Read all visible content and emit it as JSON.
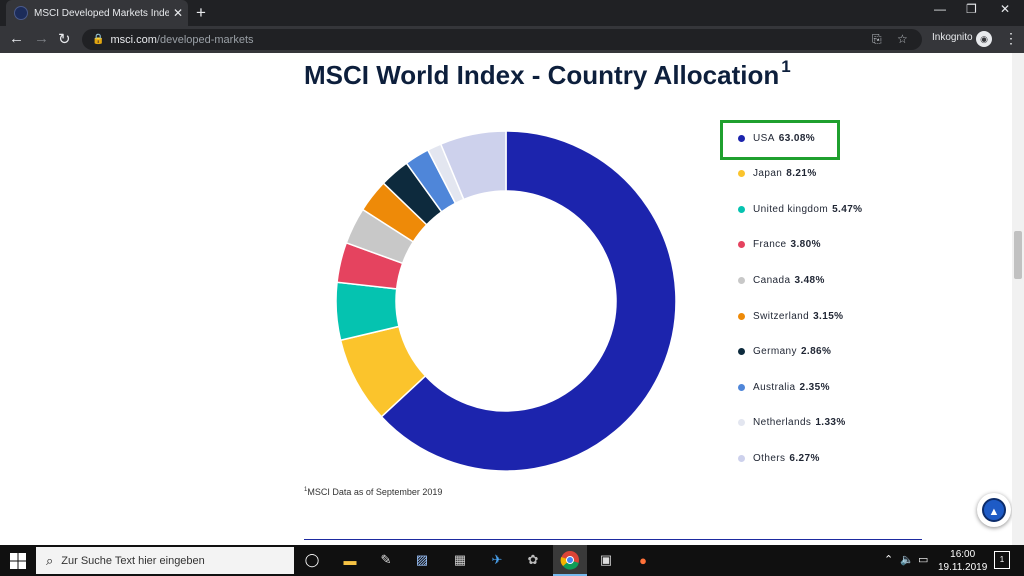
{
  "browser": {
    "tab_title": "MSCI Developed Markets Indexes",
    "tab_close": "✕",
    "new_tab": "+",
    "url_host": "msci.com",
    "url_path": "/developed-markets",
    "incognito_label": "Inkognito"
  },
  "page": {
    "title": "MSCI World Index - Country Allocation",
    "title_sup": "1",
    "footnote_sup": "1",
    "footnote": "MSCI Data as of September 2019"
  },
  "chart_data": {
    "type": "pie",
    "variant": "donut",
    "legend_position": "right",
    "slices": [
      {
        "label": "USA",
        "value": 63.08,
        "display": "63.08%",
        "color": "#1c24ad"
      },
      {
        "label": "Japan",
        "value": 8.21,
        "display": "8.21%",
        "color": "#fbc42c"
      },
      {
        "label": "United kingdom",
        "value": 5.47,
        "display": "5.47%",
        "color": "#05c3b0"
      },
      {
        "label": "France",
        "value": 3.8,
        "display": "3.80%",
        "color": "#e5435f"
      },
      {
        "label": "Canada",
        "value": 3.48,
        "display": "3.48%",
        "color": "#c8c8c8"
      },
      {
        "label": "Switzerland",
        "value": 3.15,
        "display": "3.15%",
        "color": "#ee8a08"
      },
      {
        "label": "Germany",
        "value": 2.86,
        "display": "2.86%",
        "color": "#0d2a3d"
      },
      {
        "label": "Australia",
        "value": 2.35,
        "display": "2.35%",
        "color": "#4f86d9"
      },
      {
        "label": "Netherlands",
        "value": 1.33,
        "display": "1.33%",
        "color": "#e3e6f0"
      },
      {
        "label": "Others",
        "value": 6.27,
        "display": "6.27%",
        "color": "#cdd1ec"
      }
    ]
  },
  "taskbar": {
    "search_placeholder": "Zur Suche Text hier eingeben",
    "time": "16:00",
    "date": "19.11.2019",
    "notification_count": "1"
  }
}
